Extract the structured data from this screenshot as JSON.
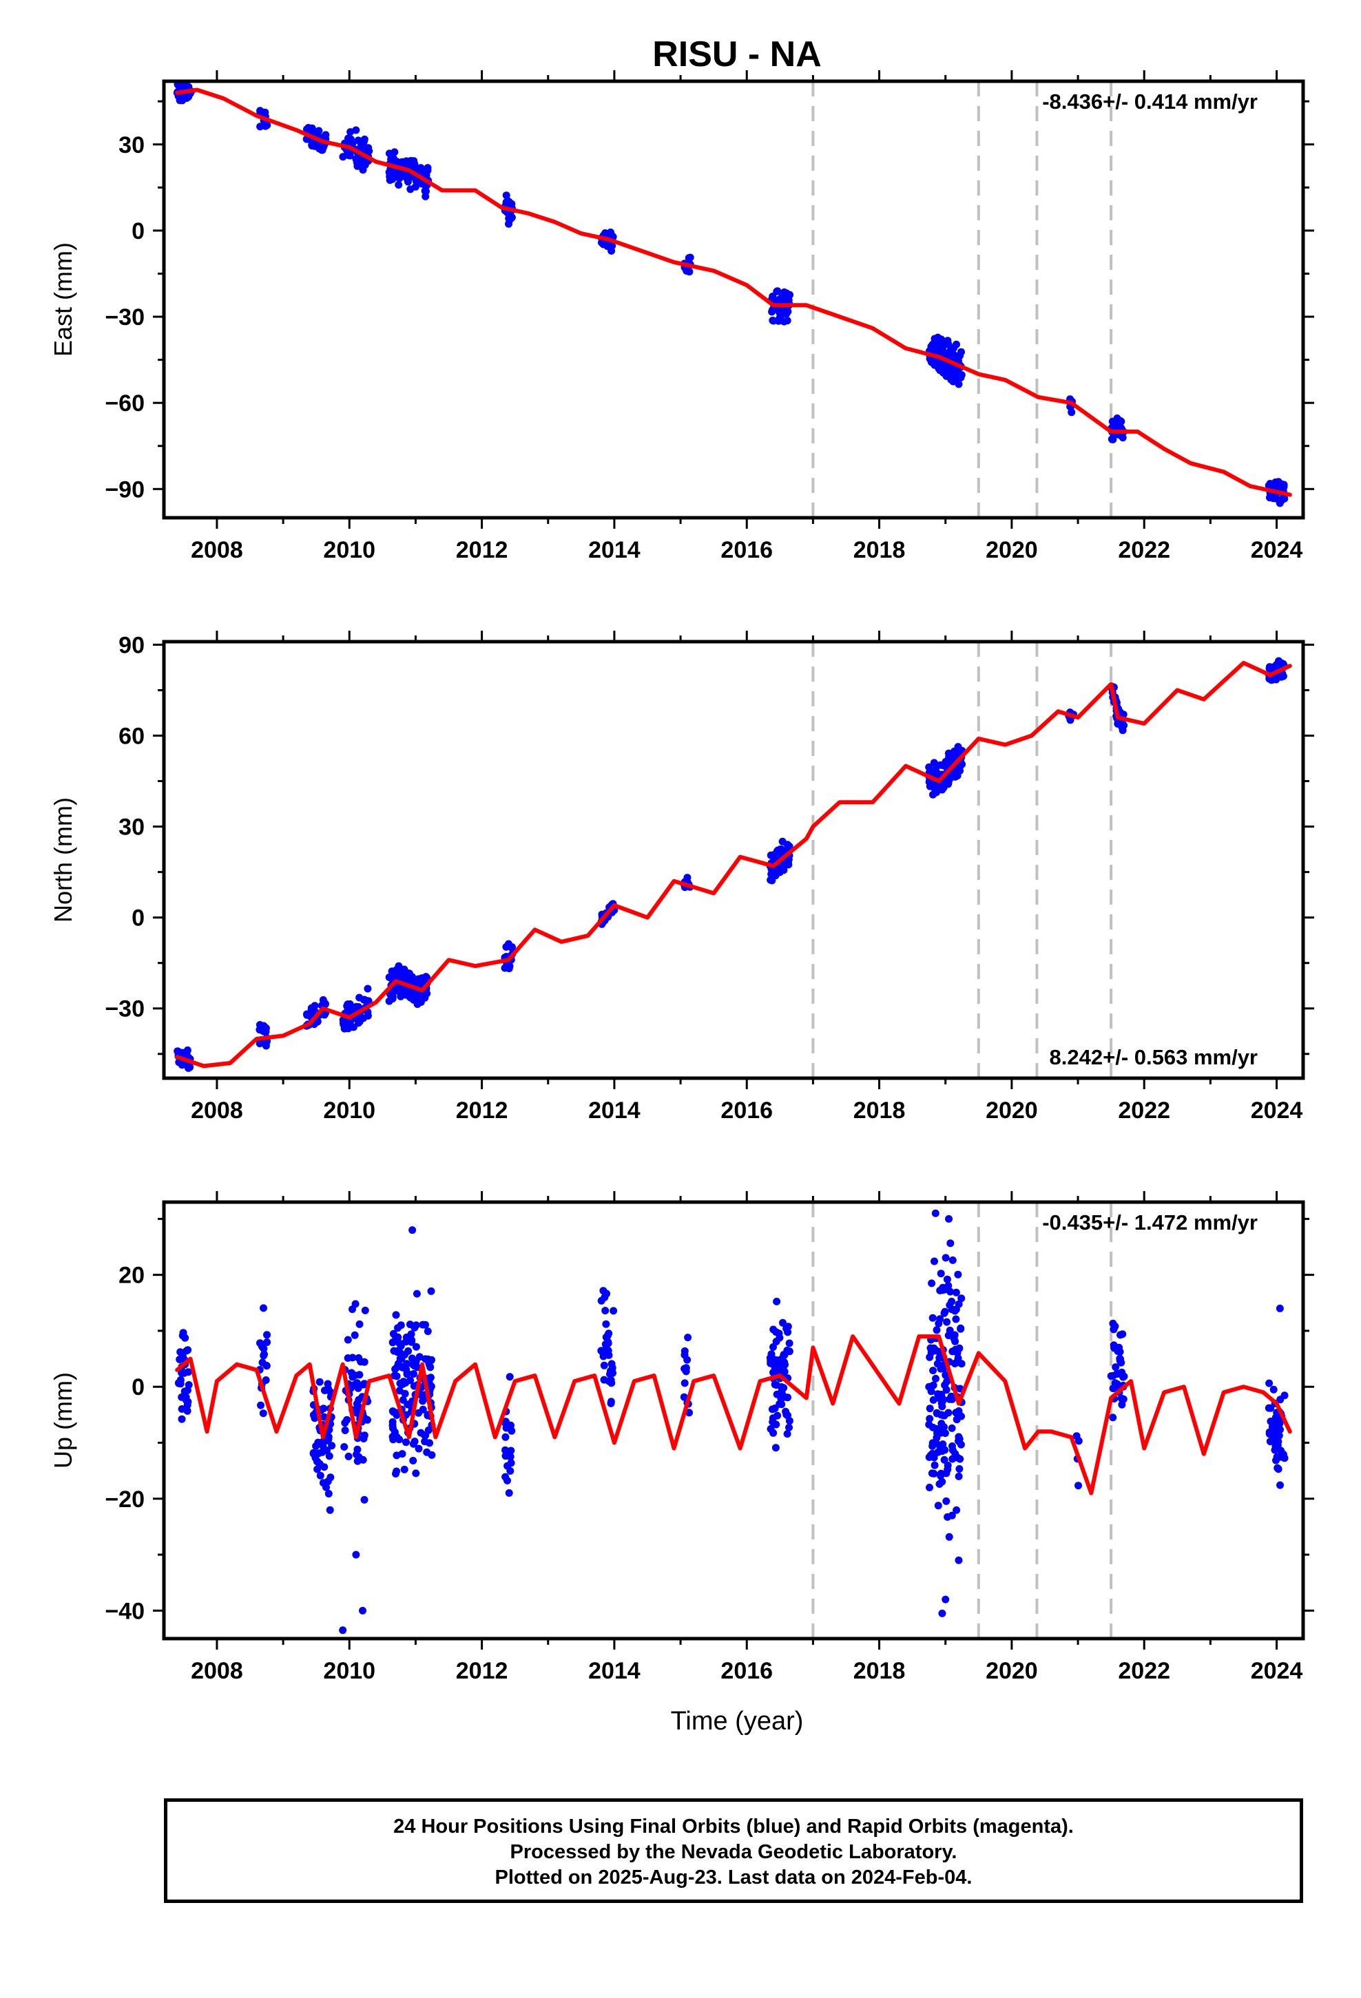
{
  "chart_data": {
    "title": "RISU - NA",
    "type": "scatter",
    "xlabel": "Time (year)",
    "xlim": [
      2007.2,
      2024.4
    ],
    "xticks": [
      2008,
      2010,
      2012,
      2014,
      2016,
      2018,
      2020,
      2022,
      2024
    ],
    "xtick_labels": [
      "2008",
      "2010",
      "2012",
      "2014",
      "2016",
      "2018",
      "2020",
      "2022",
      "2024"
    ],
    "steps": [
      2017.0,
      2019.5,
      2020.38,
      2021.5
    ],
    "colors": {
      "data": "#0000ff",
      "model": "#ff0000",
      "steps": "#c0c0c0",
      "axis": "#000000"
    },
    "panels": [
      {
        "name": "East",
        "ylabel": "East (mm)",
        "ylim": [
          -100,
          52
        ],
        "yticks": [
          30,
          0,
          -30,
          -60,
          -90
        ],
        "ytick_labels": [
          "30",
          "0",
          "−30",
          "−60",
          "−90"
        ],
        "rate": "-8.436+/- 0.414 mm/yr",
        "rate_position": "top-right",
        "model": {
          "x": [
            2007.4,
            2007.7,
            2008.1,
            2008.6,
            2009.2,
            2009.6,
            2010.0,
            2010.4,
            2010.9,
            2011.4,
            2011.9,
            2012.3,
            2012.7,
            2013.1,
            2013.5,
            2013.9,
            2014.4,
            2014.9,
            2015.5,
            2016.0,
            2016.4,
            2016.9,
            2017.4,
            2017.9,
            2018.4,
            2018.9,
            2019.5,
            2019.9,
            2020.4,
            2020.9,
            2021.5,
            2021.9,
            2022.3,
            2022.7,
            2023.2,
            2023.6,
            2024.0,
            2024.2
          ],
          "y": [
            48,
            49,
            46,
            40,
            35,
            31,
            29,
            24,
            21,
            14,
            14,
            8,
            6,
            3,
            -1,
            -3,
            -7,
            -11,
            -14,
            -19,
            -26,
            -26,
            -30,
            -34,
            -41,
            -44,
            -50,
            -52,
            -58,
            -60,
            -70,
            -70,
            -76,
            -81,
            -84,
            -89,
            -91,
            -92
          ]
        },
        "points": [
          {
            "center": 2007.5,
            "spread": 0.12,
            "yc": 47,
            "ys": 2.0,
            "n": 40
          },
          {
            "center": 2008.7,
            "spread": 0.06,
            "yc": 40,
            "ys": 1.5,
            "n": 18
          },
          {
            "center": 2009.5,
            "spread": 0.15,
            "yc": 31,
            "ys": 1.5,
            "n": 45
          },
          {
            "center": 2010.1,
            "spread": 0.2,
            "yc": 29,
            "ys": 3.0,
            "n": 50
          },
          {
            "center": 2010.9,
            "spread": 0.3,
            "yc": 23,
            "ys": 2.5,
            "n": 120
          },
          {
            "center": 2012.4,
            "spread": 0.06,
            "yc": 4,
            "ys": 2.0,
            "n": 20
          },
          {
            "center": 2013.9,
            "spread": 0.1,
            "yc": -1,
            "ys": 1.5,
            "n": 30
          },
          {
            "center": 2015.1,
            "spread": 0.05,
            "yc": -13,
            "ys": 1.5,
            "n": 12
          },
          {
            "center": 2016.5,
            "spread": 0.15,
            "yc": -26,
            "ys": 2.5,
            "n": 60
          },
          {
            "center": 2019.0,
            "spread": 0.25,
            "yc": -46,
            "ys": 3.0,
            "n": 120
          },
          {
            "center": 2020.9,
            "spread": 0.04,
            "yc": -60,
            "ys": 1.5,
            "n": 8
          },
          {
            "center": 2021.6,
            "spread": 0.1,
            "yc": -70,
            "ys": 1.8,
            "n": 35
          },
          {
            "center": 2024.0,
            "spread": 0.12,
            "yc": -93,
            "ys": 2.0,
            "n": 40
          }
        ]
      },
      {
        "name": "North",
        "ylabel": "North (mm)",
        "ylim": [
          -53,
          91
        ],
        "yticks": [
          90,
          60,
          30,
          0,
          -30
        ],
        "ytick_labels": [
          "90",
          "60",
          "30",
          "0",
          "−30"
        ],
        "rate": "8.242+/- 0.563 mm/yr",
        "rate_position": "bottom-right",
        "model": {
          "x": [
            2007.4,
            2007.8,
            2008.2,
            2008.6,
            2009.0,
            2009.4,
            2009.6,
            2010.0,
            2010.4,
            2010.7,
            2011.1,
            2011.5,
            2011.9,
            2012.4,
            2012.8,
            2013.2,
            2013.6,
            2014.0,
            2014.5,
            2014.9,
            2015.5,
            2015.9,
            2016.4,
            2016.9,
            2017.0,
            2017.4,
            2017.9,
            2018.4,
            2018.9,
            2019.5,
            2019.9,
            2020.3,
            2020.7,
            2021.0,
            2021.5,
            2021.6,
            2022.0,
            2022.5,
            2022.9,
            2023.5,
            2023.9,
            2024.2
          ],
          "y": [
            -46,
            -49,
            -48,
            -40,
            -39,
            -35,
            -30,
            -33,
            -28,
            -21,
            -24,
            -14,
            -16,
            -14,
            -4,
            -8,
            -6,
            4,
            0,
            12,
            8,
            20,
            17,
            26,
            30,
            38,
            38,
            50,
            45,
            59,
            57,
            60,
            68,
            66,
            77,
            66,
            64,
            75,
            72,
            84,
            80,
            83
          ]
        },
        "points": [
          {
            "center": 2007.5,
            "spread": 0.1,
            "yc": -48,
            "ys": 1.5,
            "n": 30
          },
          {
            "center": 2008.7,
            "spread": 0.06,
            "yc": -39,
            "ys": 2.0,
            "n": 18
          },
          {
            "center": 2009.5,
            "spread": 0.15,
            "yc": -31,
            "ys": 2.0,
            "n": 45
          },
          {
            "center": 2010.1,
            "spread": 0.2,
            "yc": -32,
            "ys": 3.0,
            "n": 50
          },
          {
            "center": 2010.9,
            "spread": 0.3,
            "yc": -24,
            "ys": 2.5,
            "n": 120
          },
          {
            "center": 2012.4,
            "spread": 0.06,
            "yc": -6,
            "ys": 2.0,
            "n": 20
          },
          {
            "center": 2013.9,
            "spread": 0.1,
            "yc": 2,
            "ys": 1.5,
            "n": 30
          },
          {
            "center": 2015.1,
            "spread": 0.05,
            "yc": 12,
            "ys": 1.0,
            "n": 12
          },
          {
            "center": 2016.5,
            "spread": 0.15,
            "yc": 29,
            "ys": 2.5,
            "n": 60
          },
          {
            "center": 2019.0,
            "spread": 0.25,
            "yc": 47,
            "ys": 2.5,
            "n": 120
          },
          {
            "center": 2020.9,
            "spread": 0.04,
            "yc": 66,
            "ys": 1.0,
            "n": 8
          },
          {
            "center": 2021.6,
            "spread": 0.1,
            "yc": 66,
            "ys": 1.8,
            "n": 35
          },
          {
            "center": 2024.0,
            "spread": 0.12,
            "yc": 81,
            "ys": 2.0,
            "n": 40
          }
        ]
      },
      {
        "name": "Up",
        "ylabel": "Up (mm)",
        "ylim": [
          -45,
          33
        ],
        "yticks": [
          20,
          0,
          -20,
          -40
        ],
        "ytick_labels": [
          "20",
          "0",
          "−20",
          "−40"
        ],
        "rate": "-0.435+/- 1.472 mm/yr",
        "rate_position": "top-right",
        "model": {
          "x": [
            2007.4,
            2007.6,
            2007.85,
            2008.0,
            2008.3,
            2008.6,
            2008.9,
            2009.2,
            2009.4,
            2009.6,
            2009.9,
            2010.1,
            2010.3,
            2010.6,
            2010.9,
            2011.1,
            2011.3,
            2011.6,
            2011.9,
            2012.2,
            2012.5,
            2012.8,
            2013.1,
            2013.4,
            2013.7,
            2014.0,
            2014.3,
            2014.6,
            2014.9,
            2015.2,
            2015.5,
            2015.9,
            2016.2,
            2016.5,
            2016.9,
            2017.0,
            2017.3,
            2017.6,
            2017.95,
            2018.3,
            2018.6,
            2018.9,
            2019.2,
            2019.5,
            2019.9,
            2020.2,
            2020.4,
            2020.6,
            2020.9,
            2021.2,
            2021.5,
            2021.8,
            2022.0,
            2022.3,
            2022.6,
            2022.9,
            2023.2,
            2023.5,
            2023.8,
            2024.0,
            2024.2
          ],
          "y": [
            3,
            5,
            -8,
            1,
            4,
            3,
            -8,
            2,
            4,
            -9,
            4,
            -9,
            1,
            2,
            -9,
            4,
            -9,
            1,
            4,
            -9,
            1,
            2,
            -9,
            1,
            2,
            -10,
            1,
            2,
            -11,
            1,
            2,
            -11,
            1,
            2,
            -2,
            7,
            -3,
            9,
            3,
            -3,
            9,
            9,
            -3,
            6,
            1,
            -11,
            -8,
            -8,
            -9,
            -19,
            -2,
            1,
            -11,
            -1,
            0,
            -12,
            -1,
            0,
            -1,
            -3,
            -8
          ]
        },
        "points": [
          {
            "center": 2007.5,
            "spread": 0.08,
            "yc": 2,
            "ys": 4.0,
            "n": 30
          },
          {
            "center": 2008.7,
            "spread": 0.06,
            "yc": 3,
            "ys": 5.0,
            "n": 18
          },
          {
            "center": 2009.6,
            "spread": 0.15,
            "yc": -8,
            "ys": 6.0,
            "n": 60
          },
          {
            "center": 2010.1,
            "spread": 0.18,
            "yc": -2,
            "ys": 7.0,
            "n": 60
          },
          {
            "center": 2010.95,
            "spread": 0.3,
            "yc": 0,
            "ys": 7.0,
            "n": 140
          },
          {
            "center": 2012.4,
            "spread": 0.05,
            "yc": -10,
            "ys": 5.0,
            "n": 20
          },
          {
            "center": 2013.9,
            "spread": 0.1,
            "yc": 6,
            "ys": 5.0,
            "n": 35
          },
          {
            "center": 2015.1,
            "spread": 0.05,
            "yc": 0,
            "ys": 5.0,
            "n": 12
          },
          {
            "center": 2016.5,
            "spread": 0.15,
            "yc": 2,
            "ys": 6.0,
            "n": 70
          },
          {
            "center": 2019.0,
            "spread": 0.25,
            "yc": 2,
            "ys": 11.0,
            "n": 160
          },
          {
            "center": 2021.0,
            "spread": 0.03,
            "yc": -10,
            "ys": 6.0,
            "n": 4
          },
          {
            "center": 2021.6,
            "spread": 0.1,
            "yc": 3,
            "ys": 4.0,
            "n": 35
          },
          {
            "center": 2024.0,
            "spread": 0.12,
            "yc": -9,
            "ys": 4.0,
            "n": 45
          }
        ],
        "outliers": {
          "x": [
            2009.9,
            2010.2,
            2010.1,
            2010.95,
            2018.85,
            2019.05,
            2019.1,
            2019.0,
            2018.95,
            2019.2,
            2024.05
          ],
          "y": [
            -43.5,
            -40,
            -30,
            28,
            31,
            30,
            -23,
            -38,
            -40.5,
            -31,
            14
          ]
        }
      }
    ]
  },
  "footer": {
    "line1": "24 Hour Positions Using Final Orbits (blue) and Rapid Orbits (magenta).",
    "line2": "Processed by the Nevada Geodetic Laboratory.",
    "line3": "Plotted on 2025-Aug-23. Last data on 2024-Feb-04."
  }
}
